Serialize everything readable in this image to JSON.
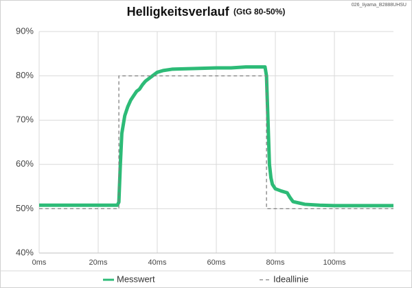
{
  "chart_data": {
    "type": "line",
    "title": "Helligkeitsverlauf",
    "subtitle": "(GtG 80-50%)",
    "annotation": "026_Iiyama_B2888UHSU",
    "xlim": [
      0,
      120
    ],
    "xticks": [
      {
        "value": 0,
        "label": "0ms"
      },
      {
        "value": 20,
        "label": "20ms"
      },
      {
        "value": 40,
        "label": "40ms"
      },
      {
        "value": 60,
        "label": "60ms"
      },
      {
        "value": 80,
        "label": "80ms"
      },
      {
        "value": 100,
        "label": "100ms"
      }
    ],
    "ylim": [
      40,
      90
    ],
    "yticks": [
      {
        "value": 40,
        "label": "40%"
      },
      {
        "value": 50,
        "label": "50%"
      },
      {
        "value": 60,
        "label": "60%"
      },
      {
        "value": 70,
        "label": "70%"
      },
      {
        "value": 80,
        "label": "80%"
      },
      {
        "value": 90,
        "label": "90%"
      }
    ],
    "grid": true,
    "legend": "bottom",
    "series": [
      {
        "name": "Messwert",
        "color": "#2dbb77",
        "style": "solid",
        "x": [
          0,
          10,
          20,
          26.5,
          27,
          27.5,
          28,
          29,
          30,
          31,
          32,
          33,
          34,
          35,
          36,
          37,
          38,
          40,
          42,
          45,
          50,
          55,
          60,
          65,
          70,
          76.5,
          77,
          77.5,
          78,
          78.5,
          79,
          80,
          82,
          84,
          85,
          86,
          88,
          90,
          95,
          100,
          110,
          120
        ],
        "values": [
          50.8,
          50.8,
          50.8,
          50.8,
          51.5,
          60,
          67,
          71,
          73,
          74.5,
          75.5,
          76.5,
          77,
          78,
          78.8,
          79.3,
          79.8,
          80.8,
          81.2,
          81.5,
          81.6,
          81.7,
          81.8,
          81.8,
          82,
          82,
          80,
          70,
          60,
          57,
          55.5,
          54.5,
          54,
          53.6,
          52.5,
          51.6,
          51.3,
          51,
          50.8,
          50.7,
          50.7,
          50.7
        ]
      },
      {
        "name": "Ideallinie",
        "color": "#808080",
        "style": "dashed",
        "x": [
          0,
          27,
          27,
          77,
          77,
          120
        ],
        "values": [
          50,
          50,
          80,
          80,
          50,
          50
        ]
      }
    ]
  }
}
